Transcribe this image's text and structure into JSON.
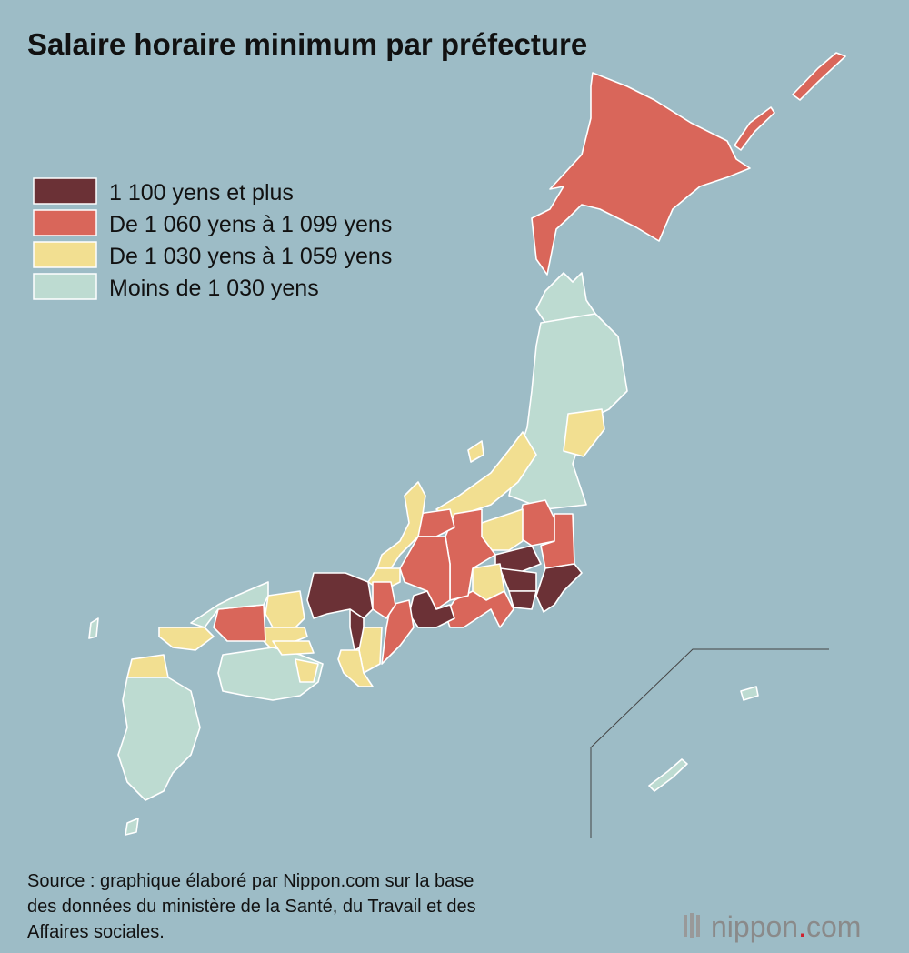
{
  "title": "Salaire horaire minimum par préfecture",
  "legend": [
    {
      "label": "1 100 yens et plus",
      "color": "#6b3136"
    },
    {
      "label": "De 1 060 yens à 1 099 yens",
      "color": "#d9665a"
    },
    {
      "label": "De 1 030 yens à 1 059 yens",
      "color": "#f2df91"
    },
    {
      "label": "Moins de 1 030 yens",
      "color": "#bddbd1"
    }
  ],
  "source": [
    "Source : graphique élaboré par Nippon.com sur la base",
    "des données du ministère de la Santé, du Travail et des",
    "Affaires sociales."
  ],
  "logo": [
    "nippon",
    ".",
    "com"
  ]
}
